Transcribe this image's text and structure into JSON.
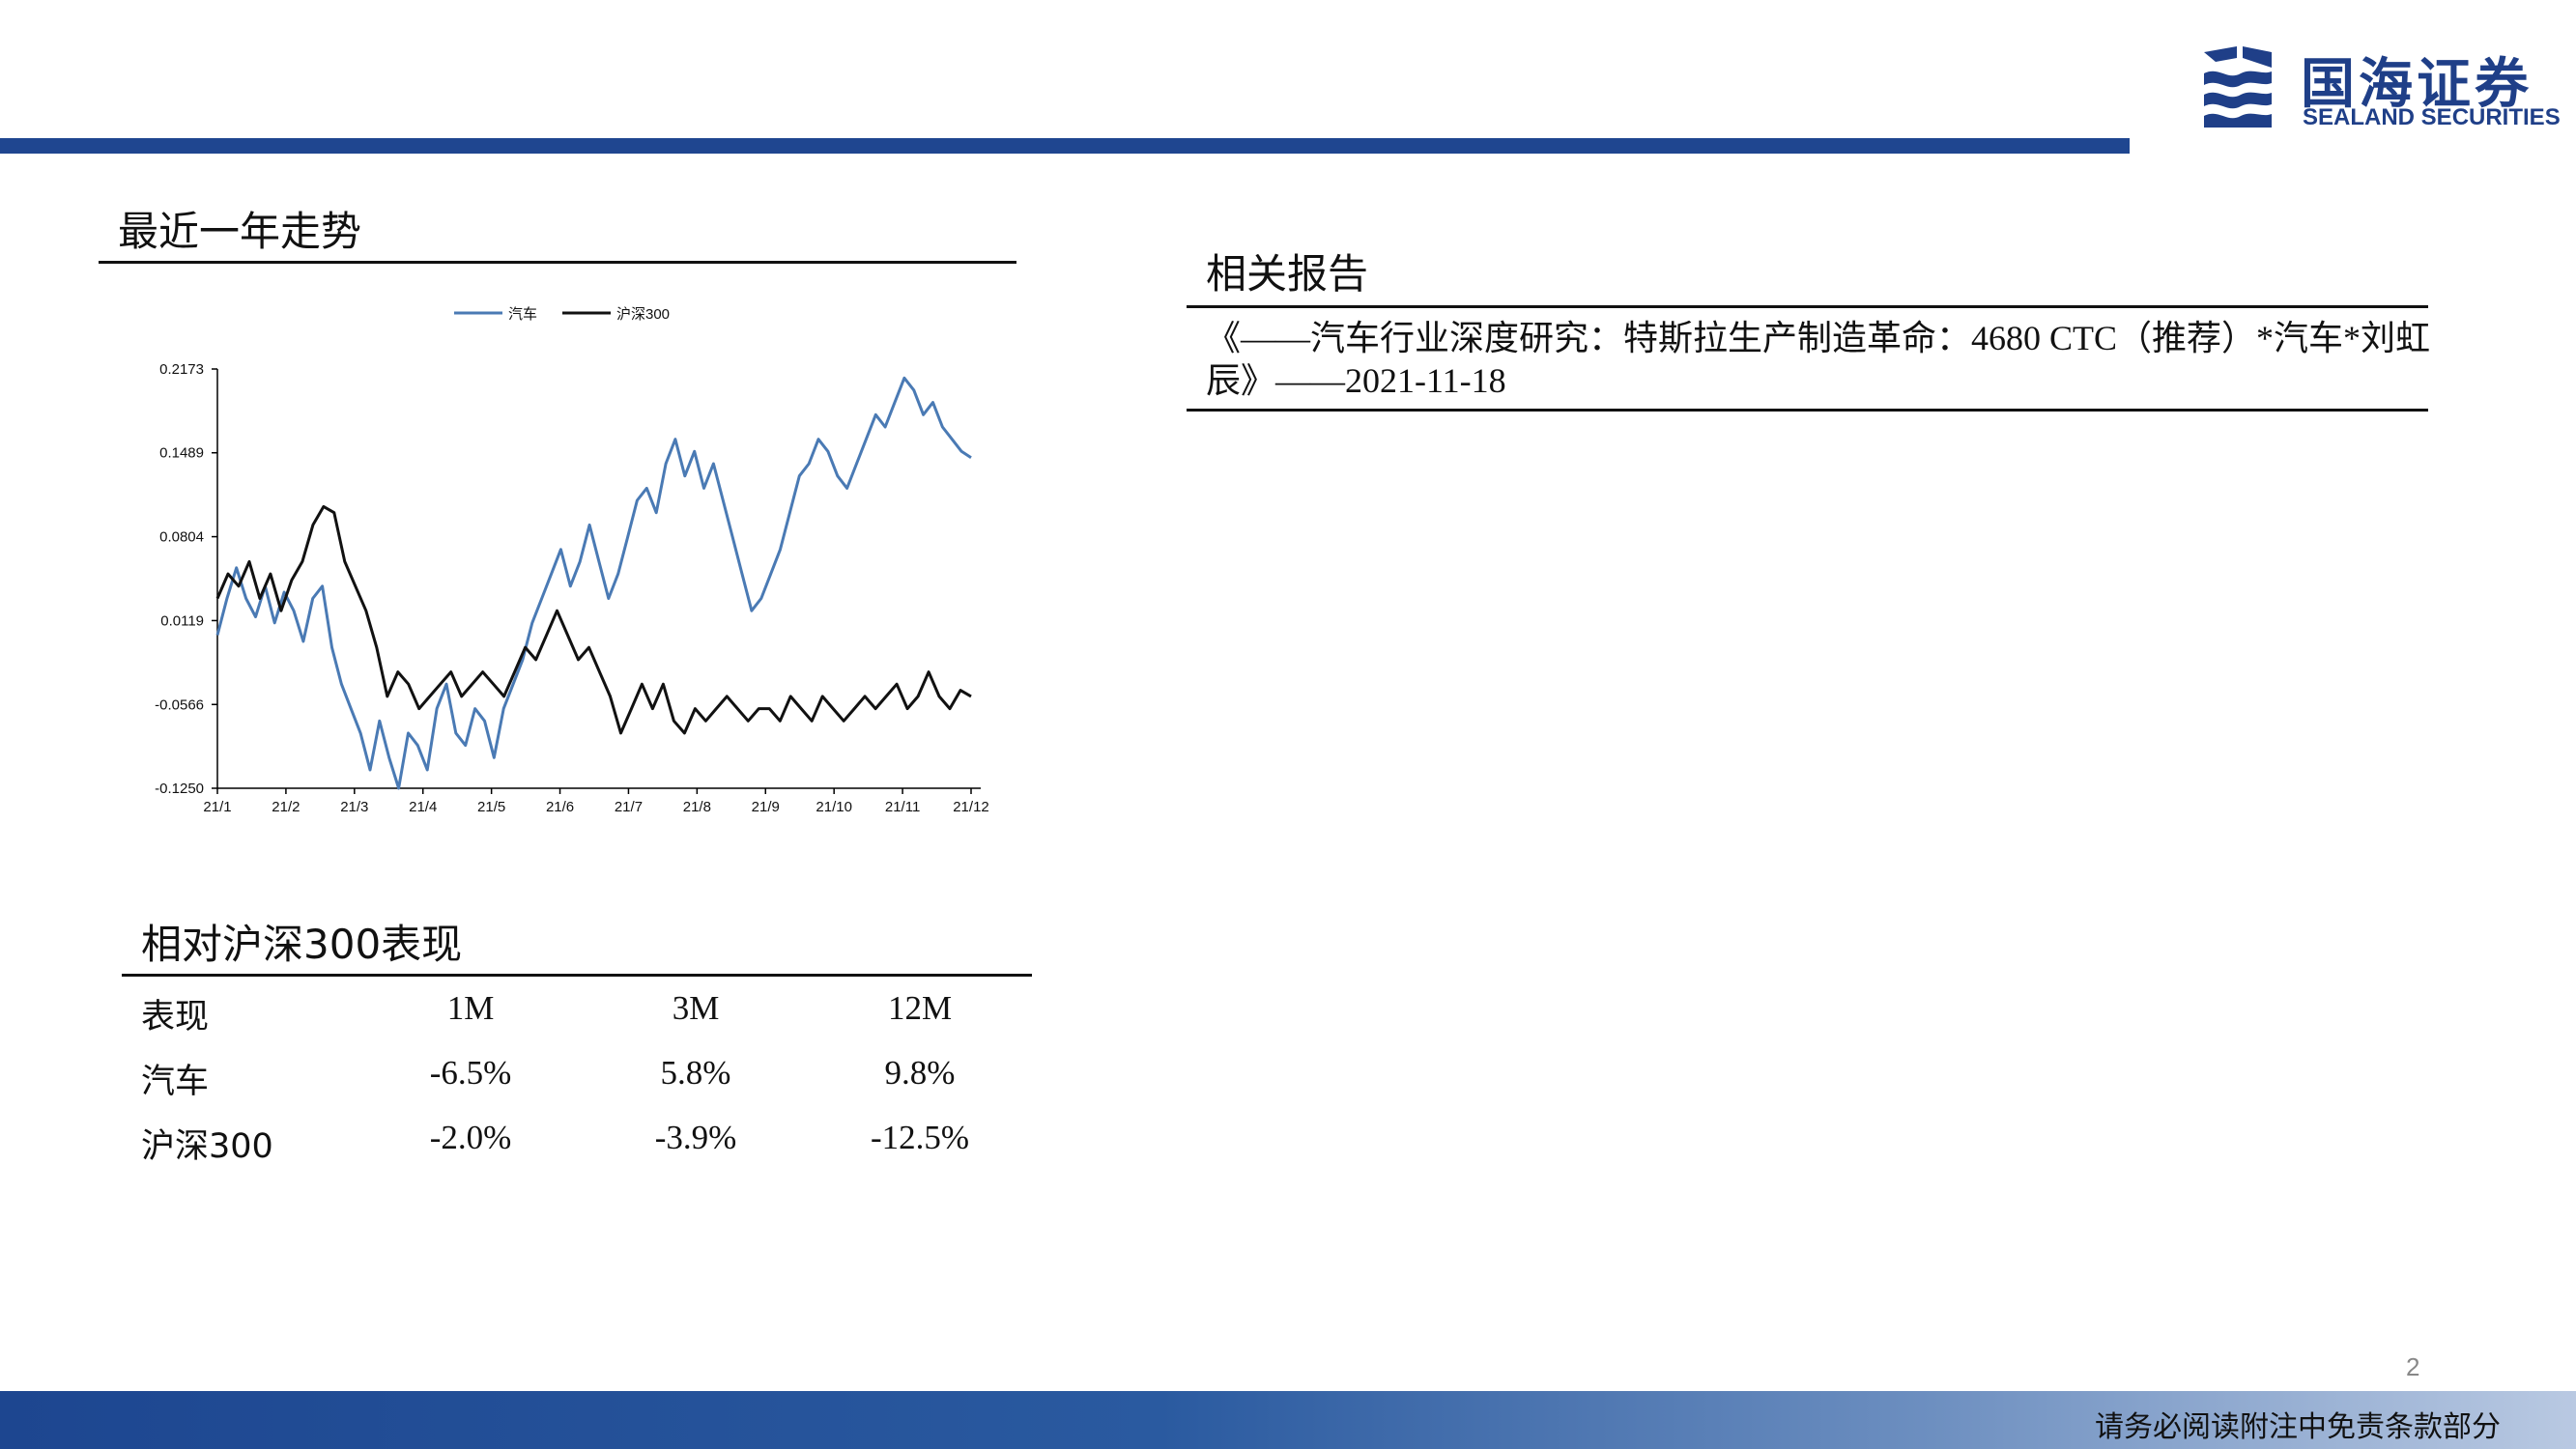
{
  "header": {
    "logo_cn": "国海证券",
    "logo_en": "SEALAND SECURITIES",
    "accent_color": "#1f4690"
  },
  "trend_section": {
    "title": "最近一年走势"
  },
  "chart_data": {
    "type": "line",
    "y_ticks": [
      "0.2173",
      "0.1489",
      "0.0804",
      "0.0119",
      "-0.0566",
      "-0.1250"
    ],
    "ylim": [
      -0.125,
      0.2173
    ],
    "x_ticks": [
      "21/1",
      "21/2",
      "21/3",
      "21/4",
      "21/5",
      "21/6",
      "21/7",
      "21/8",
      "21/9",
      "21/10",
      "21/11",
      "21/12"
    ],
    "legend_position": "top-center",
    "series": [
      {
        "name": "汽车",
        "color": "#4a7ab4",
        "values": [
          0.0,
          0.03,
          0.055,
          0.03,
          0.015,
          0.04,
          0.01,
          0.035,
          0.02,
          -0.005,
          0.03,
          0.04,
          -0.01,
          -0.04,
          -0.06,
          -0.08,
          -0.11,
          -0.07,
          -0.1,
          -0.125,
          -0.08,
          -0.09,
          -0.11,
          -0.06,
          -0.04,
          -0.08,
          -0.09,
          -0.06,
          -0.07,
          -0.1,
          -0.06,
          -0.04,
          -0.02,
          0.01,
          0.03,
          0.05,
          0.07,
          0.04,
          0.06,
          0.09,
          0.06,
          0.03,
          0.05,
          0.08,
          0.11,
          0.12,
          0.1,
          0.14,
          0.16,
          0.13,
          0.15,
          0.12,
          0.14,
          0.11,
          0.08,
          0.05,
          0.02,
          0.03,
          0.05,
          0.07,
          0.1,
          0.13,
          0.14,
          0.16,
          0.15,
          0.13,
          0.12,
          0.14,
          0.16,
          0.18,
          0.17,
          0.19,
          0.21,
          0.2,
          0.18,
          0.19,
          0.17,
          0.16,
          0.15,
          0.145
        ]
      },
      {
        "name": "沪深300",
        "color": "#111111",
        "values": [
          0.03,
          0.05,
          0.04,
          0.06,
          0.03,
          0.05,
          0.02,
          0.045,
          0.06,
          0.09,
          0.105,
          0.1,
          0.06,
          0.04,
          0.02,
          -0.01,
          -0.05,
          -0.03,
          -0.04,
          -0.06,
          -0.05,
          -0.04,
          -0.03,
          -0.05,
          -0.04,
          -0.03,
          -0.04,
          -0.05,
          -0.03,
          -0.01,
          -0.02,
          0.0,
          0.02,
          0.0,
          -0.02,
          -0.01,
          -0.03,
          -0.05,
          -0.08,
          -0.06,
          -0.04,
          -0.06,
          -0.04,
          -0.07,
          -0.08,
          -0.06,
          -0.07,
          -0.06,
          -0.05,
          -0.06,
          -0.07,
          -0.06,
          -0.06,
          -0.07,
          -0.05,
          -0.06,
          -0.07,
          -0.05,
          -0.06,
          -0.07,
          -0.06,
          -0.05,
          -0.06,
          -0.05,
          -0.04,
          -0.06,
          -0.05,
          -0.03,
          -0.05,
          -0.06,
          -0.045,
          -0.05
        ]
      }
    ]
  },
  "related_reports": {
    "title": "相关报告",
    "items": [
      "《——汽车行业深度研究：特斯拉生产制造革命：4680 CTC（推荐）*汽车*刘虹辰》——2021-11-18"
    ]
  },
  "relative_perf": {
    "title": "相对沪深300表现",
    "headers": [
      "表现",
      "1M",
      "3M",
      "12M"
    ],
    "rows": [
      [
        "汽车",
        "-6.5%",
        "5.8%",
        "9.8%"
      ],
      [
        "沪深300",
        "-2.0%",
        "-3.9%",
        "-12.5%"
      ]
    ]
  },
  "footer": {
    "page_number": "2",
    "disclaimer": "请务必阅读附注中免责条款部分"
  }
}
